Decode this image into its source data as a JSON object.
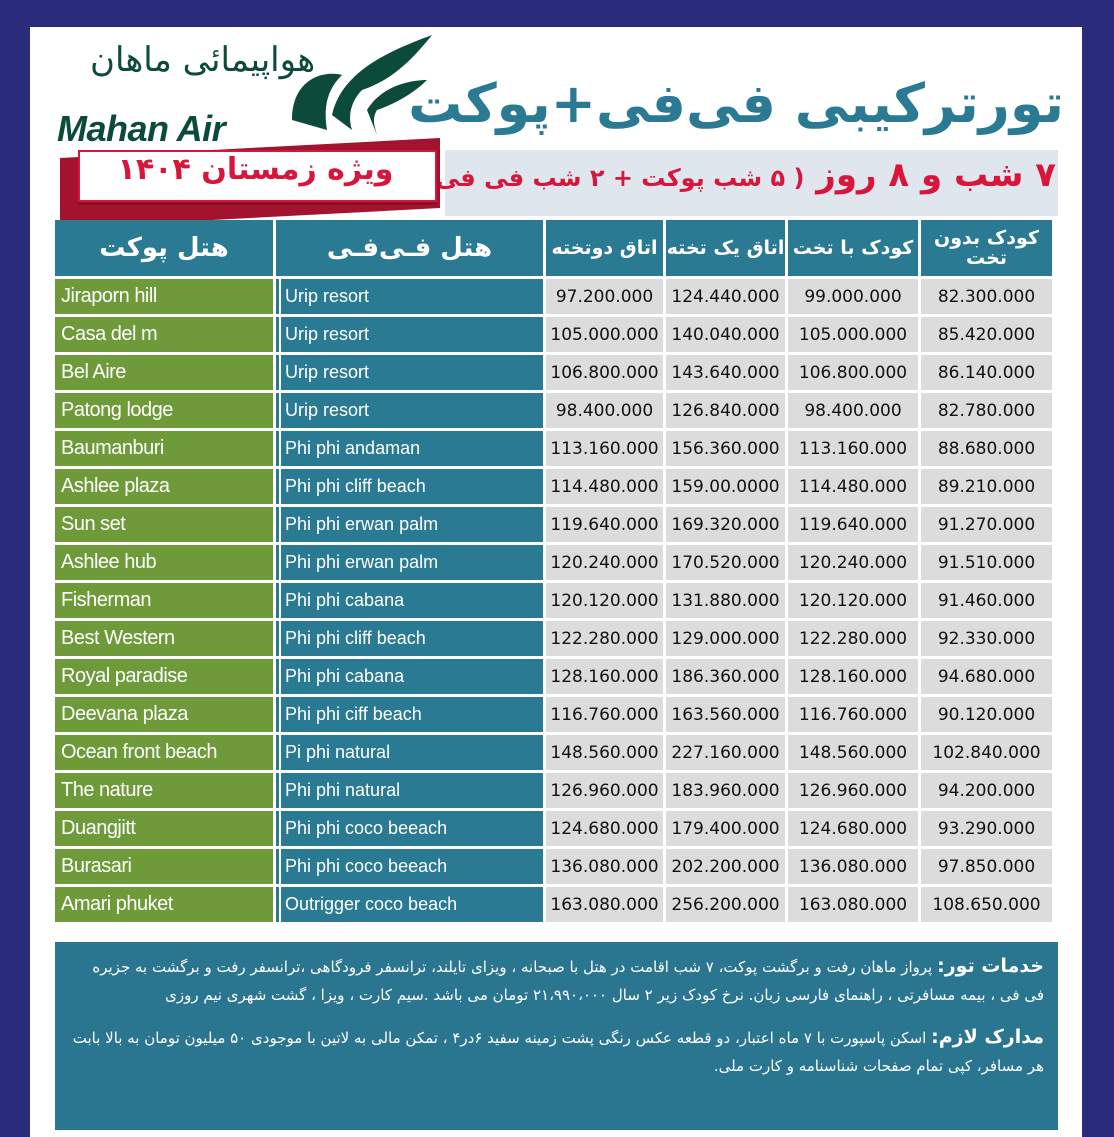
{
  "brand": {
    "name_fa": "هواپیمائی ماهان",
    "name_en": "Mahan Air",
    "logo_color": "#0c4a3c"
  },
  "header": {
    "title": "تورترکیبی فی‌فی+پوکت",
    "subtitle_main": "۷ شب و ۸ روز",
    "subtitle_detail": "( ۵ شب پوکت + ۲ شب فی فی )",
    "badge": "ویژه زمستان ۱۴۰۴"
  },
  "colors": {
    "border": "#2b2d7c",
    "teal": "#2b7a93",
    "green": "#6e9a3a",
    "red": "#d8163b"
  },
  "table": {
    "columns": [
      "هتل پوکت",
      "هتل فـی‌فـی",
      "اتاق دوتخته",
      "اتاق یک تخته",
      "کودک با تخت",
      "کودک بدون تخت"
    ],
    "rows": [
      [
        "Jiraporn hill",
        "Urip resort",
        "97.200.000",
        "124.440.000",
        "99.000.000",
        "82.300.000"
      ],
      [
        "Casa del m",
        "Urip resort",
        "105.000.000",
        "140.040.000",
        "105.000.000",
        "85.420.000"
      ],
      [
        " Bel Aire",
        "Urip resort",
        "106.800.000",
        "143.640.000",
        "106.800.000",
        "86.140.000"
      ],
      [
        "Patong lodge",
        "Urip resort",
        "98.400.000",
        "126.840.000",
        "98.400.000",
        "82.780.000"
      ],
      [
        "Baumanburi",
        "Phi phi andaman",
        "113.160.000",
        "156.360.000",
        "113.160.000",
        "88.680.000"
      ],
      [
        "Ashlee plaza",
        " Phi phi cliff beach",
        "114.480.000",
        "159.00.0000",
        "114.480.000",
        "89.210.000"
      ],
      [
        "Sun set",
        "Phi phi erwan palm",
        "119.640.000",
        "169.320.000",
        "119.640.000",
        "91.270.000"
      ],
      [
        "Ashlee hub",
        "Phi phi erwan palm",
        "120.240.000",
        "170.520.000",
        "120.240.000",
        "91.510.000"
      ],
      [
        "Fisherman",
        "Phi phi cabana",
        "120.120.000",
        "131.880.000",
        "120.120.000",
        "91.460.000"
      ],
      [
        "Best Western",
        " Phi phi cliff beach",
        "122.280.000",
        "129.000.000",
        "122.280.000",
        "92.330.000"
      ],
      [
        "Royal paradise",
        "Phi phi cabana",
        "128.160.000",
        "186.360.000",
        "128.160.000",
        "94.680.000"
      ],
      [
        "Deevana plaza",
        "Phi phi ciff beach",
        "116.760.000",
        "163.560.000",
        "116.760.000",
        "90.120.000"
      ],
      [
        "Ocean front beach",
        "Pi phi natural",
        "148.560.000",
        "227.160.000",
        "148.560.000",
        "102.840.000"
      ],
      [
        "The nature",
        "Phi phi natural",
        "126.960.000",
        "183.960.000",
        "126.960.000",
        "94.200.000"
      ],
      [
        "Duangjitt",
        "Phi phi coco beeach",
        "124.680.000",
        "179.400.000",
        "124.680.000",
        "93.290.000"
      ],
      [
        "Burasari",
        "Phi phi coco beeach",
        "136.080.000",
        "202.200.000",
        "136.080.000",
        "97.850.000"
      ],
      [
        "Amari phuket",
        "Outrigger coco beach",
        "163.080.000",
        "256.200.000",
        "163.080.000",
        "108.650.000"
      ]
    ]
  },
  "footer": {
    "services_label": "خدمات تور:",
    "services_text": "پرواز ماهان رفت و برگشت پوکت، ۷ شب اقامت در هتل با صبحانه ، ویزای تایلند، ترانسفر فرودگاهی ،ترانسفر رفت و برگشت به جزیره فی فی ،  بیمه مسافرتی ، راهنمای فارسی زبان. نرخ کودک زیر ۲ سال ۲۱،۹۹۰،۰۰۰ تومان می باشد .سیم کارت ، ویزا ، گشت شهری نیم روزی",
    "docs_label": "مدارک لازم:",
    "docs_text": "اسکن پاسپورت با ۷ ماه اعتبار، دو قطعه عکس رنگی پشت زمینه سفید ۶در۴ ، تمکن مالی به لاتین با موجودی ۵۰ میلیون تومان به بالا بابت هر مسافر، کپی تمام صفحات شناسنامه و کارت ملی."
  }
}
